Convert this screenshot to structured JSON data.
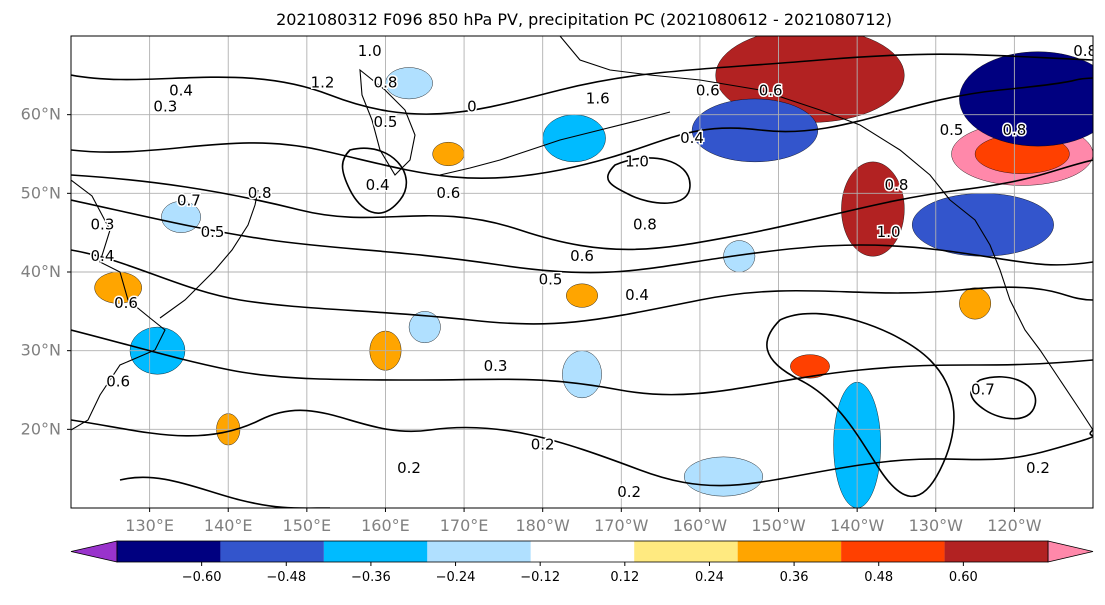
{
  "title": "2021080312 F096 850 hPa PV, precipitation PC (2021080612 - 2021080712)",
  "map": {
    "lon_range": [
      120,
      250
    ],
    "lat_range": [
      10,
      70
    ],
    "lon_ticks": [
      {
        "value": 130,
        "label": "130°E"
      },
      {
        "value": 140,
        "label": "140°E"
      },
      {
        "value": 150,
        "label": "150°E"
      },
      {
        "value": 160,
        "label": "160°E"
      },
      {
        "value": 170,
        "label": "170°E"
      },
      {
        "value": 180,
        "label": "180°W"
      },
      {
        "value": 190,
        "label": "170°W"
      },
      {
        "value": 200,
        "label": "160°W"
      },
      {
        "value": 210,
        "label": "150°W"
      },
      {
        "value": 220,
        "label": "140°W"
      },
      {
        "value": 230,
        "label": "130°W"
      },
      {
        "value": 240,
        "label": "120°W"
      }
    ],
    "lat_ticks": [
      {
        "value": 60,
        "label": "60°N"
      },
      {
        "value": 50,
        "label": "50°N"
      },
      {
        "value": 40,
        "label": "40°N"
      },
      {
        "value": 30,
        "label": "30°N"
      },
      {
        "value": 20,
        "label": "20°N"
      }
    ],
    "gridlines": true
  },
  "contour_labels": [
    {
      "text": "0.4",
      "lon": 134,
      "lat": 63
    },
    {
      "text": "0.3",
      "lon": 132,
      "lat": 61
    },
    {
      "text": "1.2",
      "lon": 152,
      "lat": 64
    },
    {
      "text": "0.8",
      "lon": 160,
      "lat": 64
    },
    {
      "text": "1.0",
      "lon": 158,
      "lat": 68
    },
    {
      "text": "0.5",
      "lon": 160,
      "lat": 59
    },
    {
      "text": "0",
      "lon": 171,
      "lat": 61
    },
    {
      "text": "0.4",
      "lon": 159,
      "lat": 51
    },
    {
      "text": "0.6",
      "lon": 168,
      "lat": 50
    },
    {
      "text": "0.8",
      "lon": 144,
      "lat": 50
    },
    {
      "text": "0.7",
      "lon": 135,
      "lat": 49
    },
    {
      "text": "0.5",
      "lon": 138,
      "lat": 45
    },
    {
      "text": "0.3",
      "lon": 124,
      "lat": 46
    },
    {
      "text": "0.4",
      "lon": 124,
      "lat": 42
    },
    {
      "text": "0.6",
      "lon": 127,
      "lat": 36
    },
    {
      "text": "0.6",
      "lon": 126,
      "lat": 26
    },
    {
      "text": "1.6",
      "lon": 187,
      "lat": 62
    },
    {
      "text": "0.6",
      "lon": 201,
      "lat": 63
    },
    {
      "text": "0.4",
      "lon": 199,
      "lat": 57
    },
    {
      "text": "1.0",
      "lon": 192,
      "lat": 54
    },
    {
      "text": "0.8",
      "lon": 193,
      "lat": 46
    },
    {
      "text": "0.6",
      "lon": 185,
      "lat": 42
    },
    {
      "text": "0.5",
      "lon": 181,
      "lat": 39
    },
    {
      "text": "0.4",
      "lon": 192,
      "lat": 37
    },
    {
      "text": "0.3",
      "lon": 174,
      "lat": 28
    },
    {
      "text": "0.2",
      "lon": 180,
      "lat": 18
    },
    {
      "text": "0.2",
      "lon": 163,
      "lat": 15
    },
    {
      "text": "0.2",
      "lon": 191,
      "lat": 12
    },
    {
      "text": "0.7",
      "lon": 236,
      "lat": 25
    },
    {
      "text": "0.2",
      "lon": 243,
      "lat": 15
    },
    {
      "text": "1.0",
      "lon": 224,
      "lat": 45
    },
    {
      "text": "0.8",
      "lon": 225,
      "lat": 51
    },
    {
      "text": "0.6",
      "lon": 209,
      "lat": 63
    },
    {
      "text": "0.5",
      "lon": 232,
      "lat": 58
    },
    {
      "text": "0.8",
      "lon": 240,
      "lat": 58
    },
    {
      "text": "0.8",
      "lon": 249,
      "lat": 68
    }
  ],
  "precip_blobs": [
    {
      "lon": 214,
      "lat": 65,
      "rx": 12,
      "ry": 6,
      "value": 0.48
    },
    {
      "lon": 241,
      "lat": 55,
      "rx": 9,
      "ry": 4,
      "value": 0.6
    },
    {
      "lon": 241,
      "lat": 55,
      "rx": 6,
      "ry": 2.5,
      "value": 0.36
    },
    {
      "lon": 222,
      "lat": 48,
      "rx": 4,
      "ry": 6,
      "value": 0.48
    },
    {
      "lon": 243,
      "lat": 62,
      "rx": 10,
      "ry": 6,
      "value": -0.6
    },
    {
      "lon": 207,
      "lat": 58,
      "rx": 8,
      "ry": 4,
      "value": -0.48
    },
    {
      "lon": 236,
      "lat": 46,
      "rx": 9,
      "ry": 4,
      "value": -0.48
    },
    {
      "lon": 184,
      "lat": 57,
      "rx": 4,
      "ry": 3,
      "value": -0.36
    },
    {
      "lon": 220,
      "lat": 18,
      "rx": 3,
      "ry": 8,
      "value": -0.36
    },
    {
      "lon": 131,
      "lat": 30,
      "rx": 3.5,
      "ry": 3,
      "value": -0.36
    },
    {
      "lon": 203,
      "lat": 14,
      "rx": 5,
      "ry": 2.5,
      "value": -0.24
    },
    {
      "lon": 185,
      "lat": 27,
      "rx": 2.5,
      "ry": 3,
      "value": -0.24
    },
    {
      "lon": 165,
      "lat": 33,
      "rx": 2,
      "ry": 2,
      "value": -0.24
    },
    {
      "lon": 134,
      "lat": 47,
      "rx": 2.5,
      "ry": 2,
      "value": -0.24
    },
    {
      "lon": 163,
      "lat": 64,
      "rx": 3,
      "ry": 2,
      "value": -0.24
    },
    {
      "lon": 205,
      "lat": 42,
      "rx": 2,
      "ry": 2,
      "value": -0.24
    },
    {
      "lon": 126,
      "lat": 38,
      "rx": 3,
      "ry": 2,
      "value": 0.24
    },
    {
      "lon": 168,
      "lat": 55,
      "rx": 2,
      "ry": 1.5,
      "value": 0.24
    },
    {
      "lon": 160,
      "lat": 30,
      "rx": 2,
      "ry": 2.5,
      "value": 0.24
    },
    {
      "lon": 185,
      "lat": 37,
      "rx": 2,
      "ry": 1.5,
      "value": 0.24
    },
    {
      "lon": 214,
      "lat": 28,
      "rx": 2.5,
      "ry": 1.5,
      "value": 0.36
    },
    {
      "lon": 235,
      "lat": 36,
      "rx": 2,
      "ry": 2,
      "value": 0.24
    },
    {
      "lon": 140,
      "lat": 20,
      "rx": 1.5,
      "ry": 2,
      "value": 0.24
    }
  ],
  "colorbar": {
    "extend": "both",
    "colors": [
      "#9933cc",
      "#000080",
      "#3355cc",
      "#00bbff",
      "#b0e0ff",
      "#ffffff",
      "#ffea80",
      "#ffa500",
      "#ff4000",
      "#b22222",
      "#ff88aa"
    ],
    "tick_labels": [
      "−0.60",
      "−0.48",
      "−0.36",
      "−0.24",
      "−0.12",
      "0.12",
      "0.24",
      "0.36",
      "0.48",
      "0.60"
    ]
  }
}
